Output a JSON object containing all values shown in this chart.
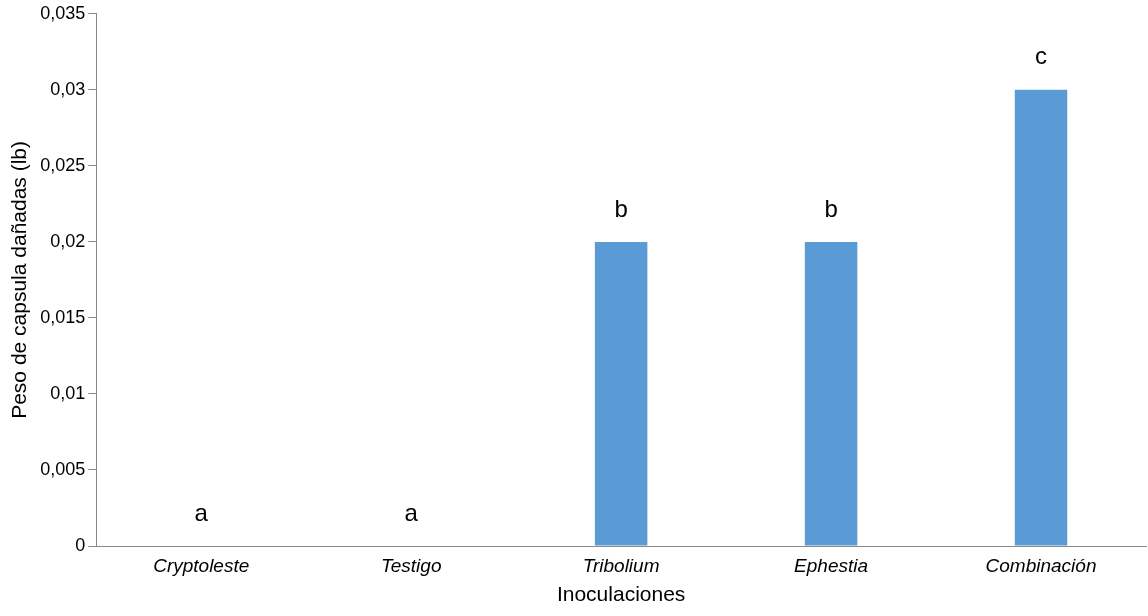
{
  "chart_data": {
    "type": "bar",
    "xlabel": "Inoculaciones",
    "ylabel": "Peso de capsula dañadas (lb)",
    "categories": [
      "Cryptoleste",
      "Testigo",
      "Tribolium",
      "Ephestia",
      "Combinación"
    ],
    "values": [
      0,
      0,
      0.02,
      0.02,
      0.03
    ],
    "color": "#5b9bd5",
    "ylim": [
      0,
      0.035
    ],
    "yticks": [
      0,
      {
        "value": 0.005,
        "label": "0,005"
      },
      {
        "value": 0.01,
        "label": "0,01"
      },
      {
        "value": 0.015,
        "label": "0,015"
      },
      {
        "value": 0.02,
        "label": "0,02"
      },
      {
        "value": 0.025,
        "label": "0,025"
      },
      {
        "value": 0.03,
        "label": "0,03"
      },
      {
        "value": 0.035,
        "label": "0,035"
      }
    ],
    "grid": false,
    "legend": false,
    "annotations": [
      {
        "text": "a",
        "x": "Cryptoleste",
        "y": 0
      },
      {
        "text": "a",
        "x": "Testigo",
        "y": 0
      },
      {
        "text": "b",
        "x": "Tribolium",
        "y": 0.02
      },
      {
        "text": "b",
        "x": "Ephestia",
        "y": 0.02
      },
      {
        "text": "c",
        "x": "Combinación",
        "y": 0.03
      }
    ]
  }
}
